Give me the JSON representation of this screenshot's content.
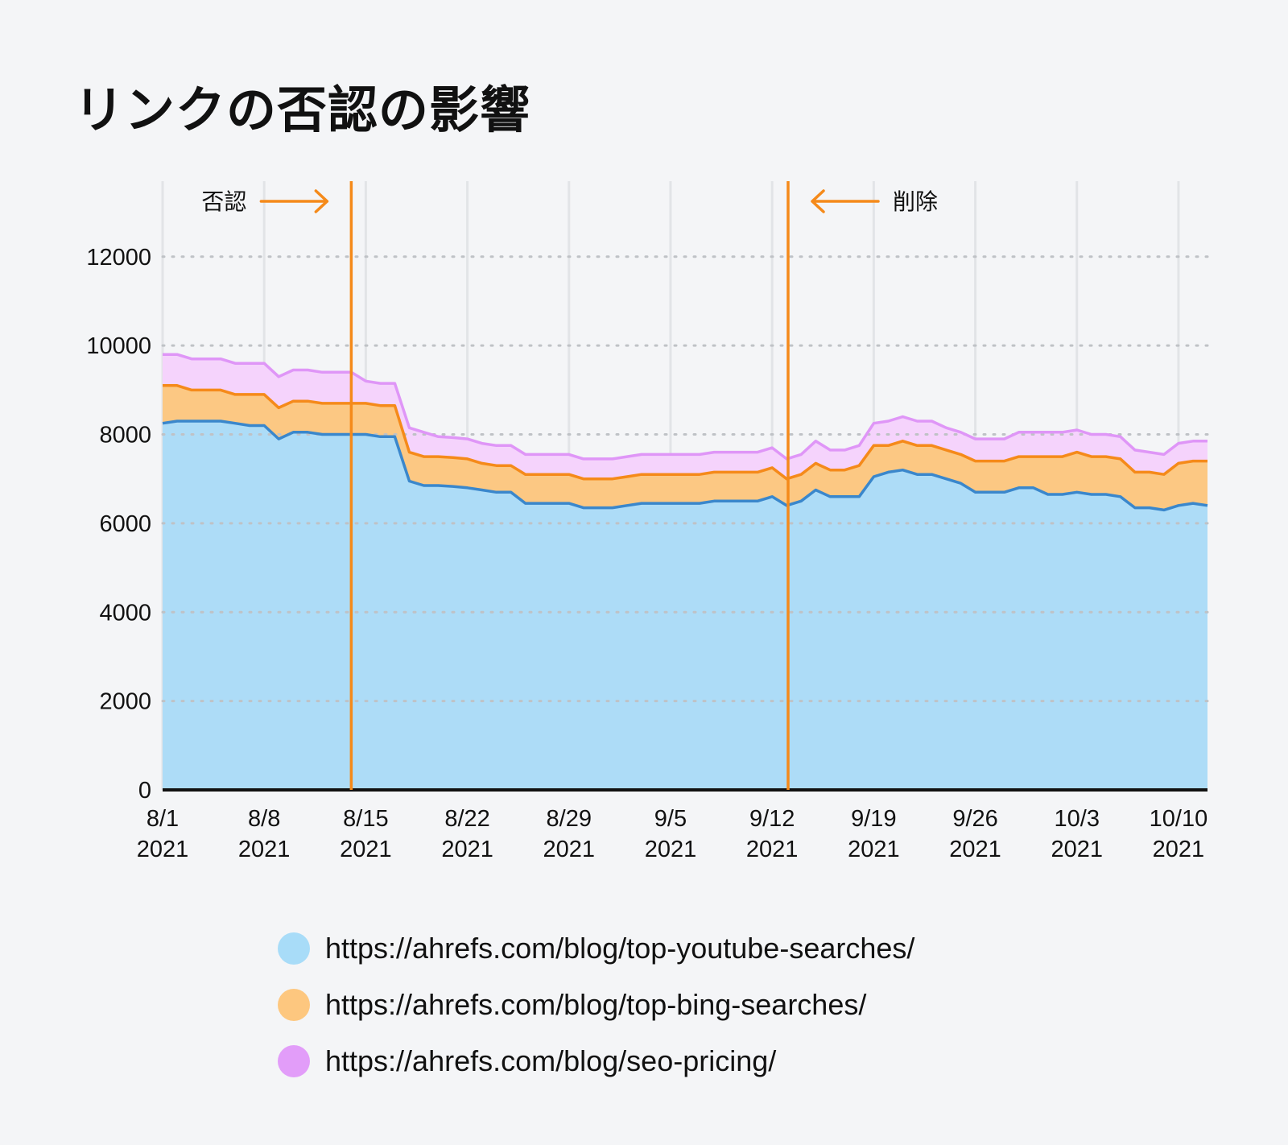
{
  "title": "リンクの否認の影響",
  "chart_data": {
    "type": "area",
    "stacked": true,
    "title": "リンクの否認の影響",
    "xlabel": "",
    "ylabel": "",
    "ylim": [
      0,
      13700
    ],
    "y_ticks": [
      0,
      2000,
      4000,
      6000,
      8000,
      10000,
      12000
    ],
    "x_range_days": [
      0,
      72
    ],
    "x_ticks": [
      {
        "day": 0,
        "label": "8/1",
        "year": "2021"
      },
      {
        "day": 7,
        "label": "8/8",
        "year": "2021"
      },
      {
        "day": 14,
        "label": "8/15",
        "year": "2021"
      },
      {
        "day": 21,
        "label": "8/22",
        "year": "2021"
      },
      {
        "day": 28,
        "label": "8/29",
        "year": "2021"
      },
      {
        "day": 35,
        "label": "9/5",
        "year": "2021"
      },
      {
        "day": 42,
        "label": "9/12",
        "year": "2021"
      },
      {
        "day": 49,
        "label": "9/19",
        "year": "2021"
      },
      {
        "day": 56,
        "label": "9/26",
        "year": "2021"
      },
      {
        "day": 63,
        "label": "10/3",
        "year": "2021"
      },
      {
        "day": 70,
        "label": "10/10",
        "year": "2021"
      }
    ],
    "x": [
      0,
      1,
      2,
      3,
      4,
      5,
      6,
      7,
      8,
      9,
      10,
      11,
      12,
      13,
      14,
      15,
      16,
      17,
      18,
      19,
      20,
      21,
      22,
      23,
      24,
      25,
      26,
      27,
      28,
      29,
      30,
      31,
      32,
      33,
      34,
      35,
      36,
      37,
      38,
      39,
      40,
      41,
      42,
      43,
      44,
      45,
      46,
      47,
      48,
      49,
      50,
      51,
      52,
      53,
      54,
      55,
      56,
      57,
      58,
      59,
      60,
      61,
      62,
      63,
      64,
      65,
      66,
      67,
      68,
      69,
      70,
      71,
      72
    ],
    "series": [
      {
        "name": "https://ahrefs.com/blog/top-youtube-searches/",
        "color": "#addcf7",
        "line_color": "#3a87cc",
        "values": [
          8250,
          8300,
          8300,
          8300,
          8300,
          8250,
          8200,
          8200,
          7900,
          8050,
          8050,
          8000,
          8000,
          8000,
          8000,
          7950,
          7950,
          6950,
          6850,
          6850,
          6830,
          6800,
          6750,
          6700,
          6700,
          6450,
          6450,
          6450,
          6450,
          6350,
          6350,
          6350,
          6400,
          6450,
          6450,
          6450,
          6450,
          6450,
          6500,
          6500,
          6500,
          6500,
          6600,
          6400,
          6500,
          6750,
          6600,
          6600,
          6600,
          7050,
          7150,
          7200,
          7100,
          7100,
          7000,
          6900,
          6700,
          6700,
          6700,
          6800,
          6800,
          6650,
          6650,
          6700,
          6650,
          6650,
          6600,
          6350,
          6350,
          6300,
          6400,
          6450,
          6400
        ]
      },
      {
        "name": "https://ahrefs.com/blog/top-bing-searches/",
        "color": "#fcc883",
        "line_color": "#f58a1a",
        "values": [
          850,
          800,
          700,
          700,
          700,
          650,
          700,
          700,
          700,
          700,
          700,
          700,
          700,
          700,
          700,
          700,
          700,
          650,
          650,
          650,
          650,
          650,
          600,
          600,
          600,
          650,
          650,
          650,
          650,
          650,
          650,
          650,
          650,
          650,
          650,
          650,
          650,
          650,
          650,
          650,
          650,
          650,
          650,
          600,
          600,
          600,
          600,
          600,
          700,
          700,
          600,
          650,
          650,
          650,
          650,
          650,
          700,
          700,
          700,
          700,
          700,
          850,
          850,
          900,
          850,
          850,
          850,
          800,
          800,
          800,
          950,
          950,
          1000
        ]
      },
      {
        "name": "https://ahrefs.com/blog/seo-pricing/",
        "color": "#f5d3fc",
        "line_color": "#df96f7",
        "values": [
          700,
          700,
          700,
          700,
          700,
          700,
          700,
          700,
          700,
          700,
          700,
          700,
          700,
          700,
          500,
          500,
          500,
          550,
          550,
          450,
          450,
          450,
          450,
          450,
          450,
          450,
          450,
          450,
          450,
          450,
          450,
          450,
          450,
          450,
          450,
          450,
          450,
          450,
          450,
          450,
          450,
          450,
          450,
          450,
          450,
          500,
          450,
          450,
          450,
          500,
          550,
          550,
          550,
          550,
          500,
          500,
          500,
          500,
          500,
          550,
          550,
          550,
          550,
          500,
          500,
          500,
          500,
          500,
          450,
          450,
          450,
          450,
          450
        ]
      }
    ],
    "annotations": [
      {
        "day": 13.0,
        "label": "否認",
        "arrow": "right"
      },
      {
        "day": 43.1,
        "label": "削除",
        "arrow": "left"
      }
    ],
    "legend_position": "bottom"
  },
  "colors": {
    "background": "#f4f5f7",
    "marker": "#f58a1a",
    "axis": "#111111",
    "vgrid": "#e2e4e7",
    "hgrid": "#bfc2c6"
  }
}
